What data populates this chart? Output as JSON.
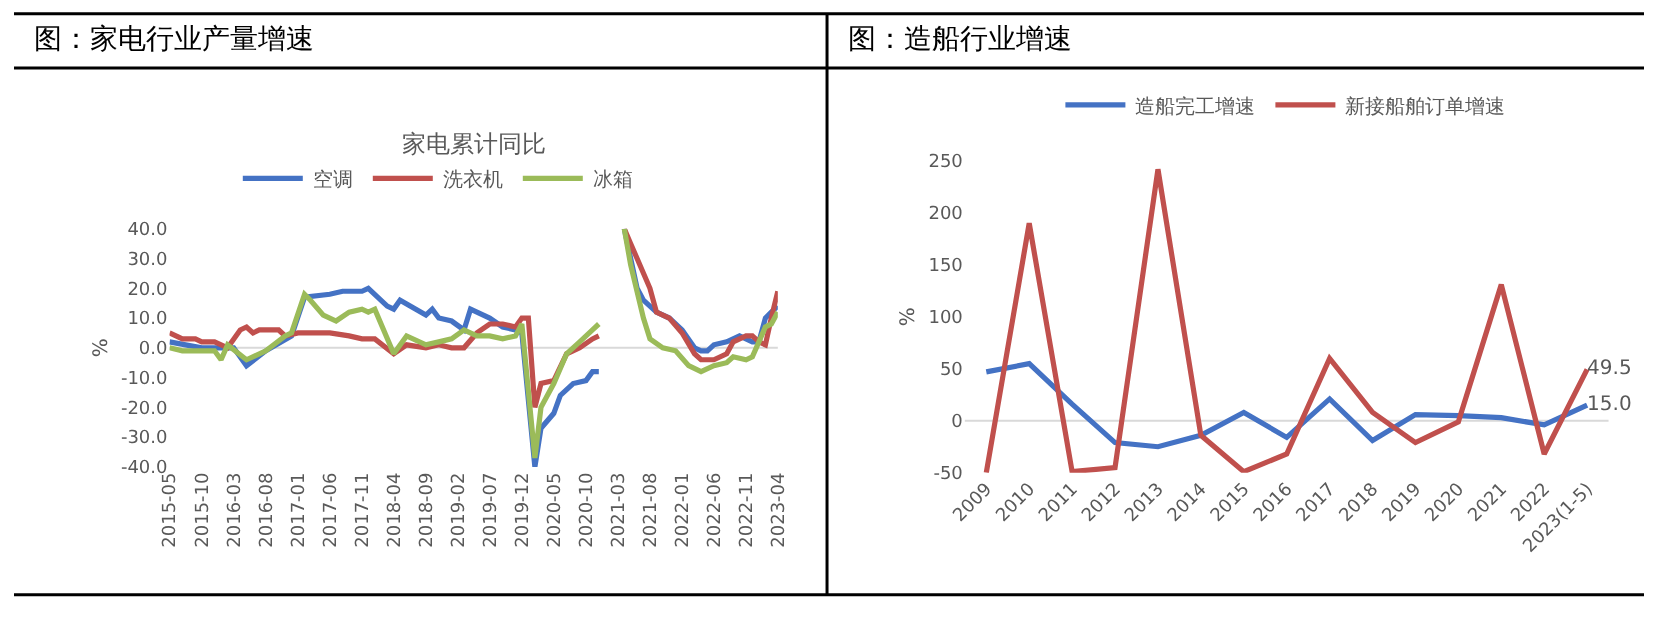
{
  "chart_data": [
    {
      "type": "line",
      "title": "图：家电行业产量增速",
      "subtitle": "家电累计同比",
      "ylabel": "%",
      "legend": "top",
      "grid": false,
      "xlim": [
        "2015-05",
        "2023-04"
      ],
      "xticks": [
        "2015-05",
        "2015-10",
        "2016-03",
        "2016-08",
        "2017-01",
        "2017-06",
        "2017-11",
        "2018-04",
        "2018-09",
        "2019-02",
        "2019-07",
        "2019-12",
        "2020-05",
        "2020-10",
        "2021-03",
        "2021-08",
        "2022-01",
        "2022-06",
        "2022-11",
        "2023-04"
      ],
      "ylim": [
        -40,
        40
      ],
      "ref_lines": [
        {
          "axis": "y",
          "value": 0,
          "color": "#d9d9d9"
        }
      ],
      "yticks": [
        {
          "value": 40,
          "label": "40.0"
        },
        {
          "value": 30,
          "label": "30.0"
        },
        {
          "value": 20,
          "label": "20.0"
        },
        {
          "value": 10,
          "label": "10.0"
        },
        {
          "value": 0,
          "label": "0.0"
        },
        {
          "value": -10,
          "label": "-10.0"
        },
        {
          "value": -20,
          "label": "-20.0"
        },
        {
          "value": -30,
          "label": "-30.0"
        },
        {
          "value": -40,
          "label": "-40.0"
        }
      ],
      "series": [
        {
          "name": "空调",
          "color": "#4472c4",
          "x": [
            "2015-05",
            "2015-10",
            "2016-03",
            "2016-05",
            "2016-08",
            "2016-12",
            "2017-02",
            "2017-06",
            "2017-08",
            "2017-11",
            "2017-12",
            "2018-03",
            "2018-04",
            "2018-05",
            "2018-09",
            "2018-10",
            "2018-11",
            "2019-01",
            "2019-03",
            "2019-04",
            "2019-07",
            "2019-09",
            "2019-11",
            "2019-12",
            "2020-02",
            "2020-03",
            "2020-05",
            "2020-06",
            "2020-08",
            "2020-10",
            "2020-11",
            "2020-12",
            "2021-02",
            "2021-03",
            "2021-04",
            "2021-06",
            "2021-07",
            "2021-09",
            "2021-11",
            "2022-01",
            "2022-03",
            "2022-04",
            "2022-05",
            "2022-06",
            "2022-08",
            "2022-10",
            "2022-12",
            "2023-01",
            "2023-02",
            "2023-03",
            "2023-04"
          ],
          "values": [
            2,
            0,
            0,
            -6,
            -1,
            4,
            17,
            18,
            19,
            19,
            20,
            14,
            13,
            16,
            11,
            13,
            10,
            9,
            6,
            13,
            10,
            7,
            6,
            5,
            -40,
            -27,
            -22,
            -16,
            -12,
            -11,
            -8,
            -8,
            null,
            null,
            40,
            20,
            16,
            12,
            10,
            6,
            0,
            -1,
            -1,
            1,
            2,
            4,
            2,
            2,
            10,
            12,
            14
          ]
        },
        {
          "name": "洗衣机",
          "color": "#c0504d",
          "x": [
            "2015-05",
            "2015-07",
            "2015-09",
            "2015-10",
            "2015-12",
            "2016-02",
            "2016-04",
            "2016-05",
            "2016-06",
            "2016-07",
            "2016-10",
            "2016-11",
            "2017-01",
            "2017-06",
            "2017-09",
            "2017-11",
            "2018-01",
            "2018-04",
            "2018-06",
            "2018-09",
            "2018-11",
            "2019-01",
            "2019-03",
            "2019-05",
            "2019-07",
            "2019-09",
            "2019-11",
            "2019-12",
            "2020-01",
            "2020-02",
            "2020-03",
            "2020-05",
            "2020-07",
            "2020-09",
            "2020-11",
            "2020-12",
            "2021-02",
            "2021-03",
            "2021-04",
            "2021-05",
            "2021-06",
            "2021-08",
            "2021-09",
            "2021-11",
            "2022-01",
            "2022-03",
            "2022-04",
            "2022-06",
            "2022-08",
            "2022-09",
            "2022-11",
            "2022-12",
            "2023-01",
            "2023-02",
            "2023-03",
            "2023-04"
          ],
          "values": [
            5,
            3,
            3,
            2,
            2,
            0,
            6,
            7,
            5,
            6,
            6,
            4,
            5,
            5,
            4,
            3,
            3,
            -2,
            1,
            0,
            1,
            0,
            0,
            5,
            8,
            8,
            7,
            10,
            10,
            -20,
            -12,
            -11,
            -2,
            0,
            3,
            4,
            null,
            null,
            40,
            35,
            30,
            20,
            12,
            10,
            5,
            -2,
            -4,
            -4,
            -2,
            2,
            4,
            4,
            2,
            1,
            10,
            19
          ]
        },
        {
          "name": "冰箱",
          "color": "#9bbb59",
          "x": [
            "2015-05",
            "2015-07",
            "2015-12",
            "2016-01",
            "2016-02",
            "2016-05",
            "2016-08",
            "2016-11",
            "2016-12",
            "2017-02",
            "2017-03",
            "2017-05",
            "2017-07",
            "2017-09",
            "2017-11",
            "2017-12",
            "2018-01",
            "2018-04",
            "2018-06",
            "2018-09",
            "2018-11",
            "2019-01",
            "2019-03",
            "2019-05",
            "2019-07",
            "2019-09",
            "2019-11",
            "2019-12",
            "2020-02",
            "2020-03",
            "2020-05",
            "2020-07",
            "2020-09",
            "2020-11",
            "2020-12",
            "2021-02",
            "2021-03",
            "2021-04",
            "2021-05",
            "2021-07",
            "2021-08",
            "2021-10",
            "2021-12",
            "2022-02",
            "2022-04",
            "2022-06",
            "2022-08",
            "2022-09",
            "2022-11",
            "2022-12",
            "2023-02",
            "2023-03",
            "2023-04"
          ],
          "values": [
            0,
            -1,
            -1,
            -4,
            1,
            -4,
            -1,
            4,
            5,
            18,
            16,
            11,
            9,
            12,
            13,
            12,
            13,
            -2,
            4,
            1,
            2,
            3,
            6,
            4,
            4,
            3,
            4,
            8,
            -37,
            -20,
            -12,
            -2,
            2,
            6,
            8,
            null,
            null,
            40,
            28,
            10,
            3,
            0,
            -1,
            -6,
            -8,
            -6,
            -5,
            -3,
            -4,
            -3,
            7,
            8,
            12
          ]
        }
      ]
    },
    {
      "type": "line",
      "title": "图：造船行业增速",
      "ylabel": "%",
      "legend": "top",
      "grid": false,
      "categories": [
        "2009",
        "2010",
        "2011",
        "2012",
        "2013",
        "2014",
        "2015",
        "2016",
        "2017",
        "2018",
        "2019",
        "2020",
        "2021",
        "2022",
        "2023(1-5)"
      ],
      "ylim": [
        -50,
        250
      ],
      "ref_lines": [
        {
          "axis": "y",
          "value": 0,
          "color": "#d9d9d9"
        }
      ],
      "yticks": [
        -50,
        0,
        50,
        100,
        150,
        200,
        250
      ],
      "series": [
        {
          "name": "造船完工增速",
          "color": "#4472c4",
          "values": [
            47,
            55,
            16,
            -21,
            -25,
            -14,
            8,
            -16,
            21,
            -19,
            6,
            5,
            3,
            -4,
            15.0
          ],
          "value_labels": [
            null,
            null,
            null,
            null,
            null,
            null,
            null,
            null,
            null,
            null,
            null,
            null,
            null,
            null,
            "15.0"
          ]
        },
        {
          "name": "新接船舶订单增速",
          "color": "#c0504d",
          "values": [
            -50,
            190,
            -49,
            -45,
            242,
            -14,
            -49,
            -32,
            60,
            8,
            -21,
            -1,
            131,
            -32,
            49.5
          ],
          "value_labels": [
            null,
            null,
            null,
            null,
            null,
            null,
            null,
            null,
            null,
            null,
            null,
            null,
            null,
            null,
            "49.5"
          ]
        }
      ]
    }
  ]
}
